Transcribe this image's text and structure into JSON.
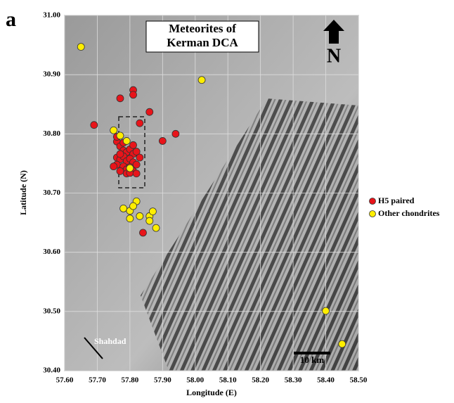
{
  "panel_label": "a",
  "chart_data": {
    "type": "scatter",
    "title": [
      "Meteorites of",
      "Kerman DCA"
    ],
    "xlabel": "Longitude (E)",
    "ylabel": "Latitude (N)",
    "annotations": {
      "north": "N",
      "town": "Shahdad",
      "scale": "10 km"
    },
    "legend": "right",
    "xlim": [
      57.6,
      58.5
    ],
    "ylim": [
      30.4,
      31.0
    ],
    "xticks": [
      {
        "value": 57.6,
        "label": "57.60"
      },
      {
        "value": 57.7,
        "label": "57.70"
      },
      {
        "value": 57.8,
        "label": "57.80"
      },
      {
        "value": 57.9,
        "label": "57.90"
      },
      {
        "value": 58.0,
        "label": "58.00"
      },
      {
        "value": 58.1,
        "label": "58.10"
      },
      {
        "value": 58.2,
        "label": "58.20"
      },
      {
        "value": 58.3,
        "label": "58.30"
      },
      {
        "value": 58.4,
        "label": "58.40"
      },
      {
        "value": 58.5,
        "label": "58.50"
      }
    ],
    "yticks": [
      {
        "value": 30.4,
        "label": "30.40"
      },
      {
        "value": 30.5,
        "label": "30.50"
      },
      {
        "value": 30.6,
        "label": "30.60"
      },
      {
        "value": 30.7,
        "label": "30.70"
      },
      {
        "value": 30.8,
        "label": "30.80"
      },
      {
        "value": 30.9,
        "label": "30.90"
      },
      {
        "value": 31.0,
        "label": "31.00"
      }
    ],
    "grid": true,
    "series": [
      {
        "name": "H5 paired",
        "color": "#e8141a",
        "x": [
          57.69,
          57.77,
          57.81,
          57.81,
          57.86,
          57.83,
          57.94,
          57.9,
          57.84,
          57.76,
          57.77,
          57.78,
          57.79,
          57.8,
          57.81,
          57.82,
          57.83,
          57.76,
          57.77,
          57.78,
          57.79,
          57.8,
          57.81,
          57.82,
          57.76,
          57.78,
          57.79,
          57.8,
          57.81,
          57.77,
          57.79,
          57.8,
          57.82,
          57.75,
          57.77,
          57.78,
          57.81,
          57.76
        ],
        "values": [
          30.815,
          30.86,
          30.874,
          30.866,
          30.837,
          30.818,
          30.8,
          30.788,
          30.633,
          30.787,
          30.779,
          30.772,
          30.769,
          30.774,
          30.766,
          30.77,
          30.76,
          30.76,
          30.757,
          30.762,
          30.754,
          30.758,
          30.752,
          30.748,
          30.748,
          30.745,
          30.74,
          30.744,
          30.737,
          30.737,
          30.733,
          30.734,
          30.733,
          30.745,
          30.766,
          30.785,
          30.781,
          30.795
        ]
      },
      {
        "name": "Other chondrites",
        "color": "#ffee00",
        "x": [
          57.65,
          58.02,
          57.75,
          57.77,
          57.79,
          57.8,
          57.78,
          57.8,
          57.82,
          57.81,
          57.8,
          57.83,
          57.86,
          57.87,
          57.86,
          57.88,
          58.4,
          58.45
        ],
        "values": [
          30.947,
          30.891,
          30.806,
          30.797,
          30.788,
          30.742,
          30.674,
          30.67,
          30.686,
          30.678,
          30.657,
          30.661,
          30.661,
          30.669,
          30.653,
          30.641,
          30.501,
          30.445
        ]
      }
    ]
  }
}
